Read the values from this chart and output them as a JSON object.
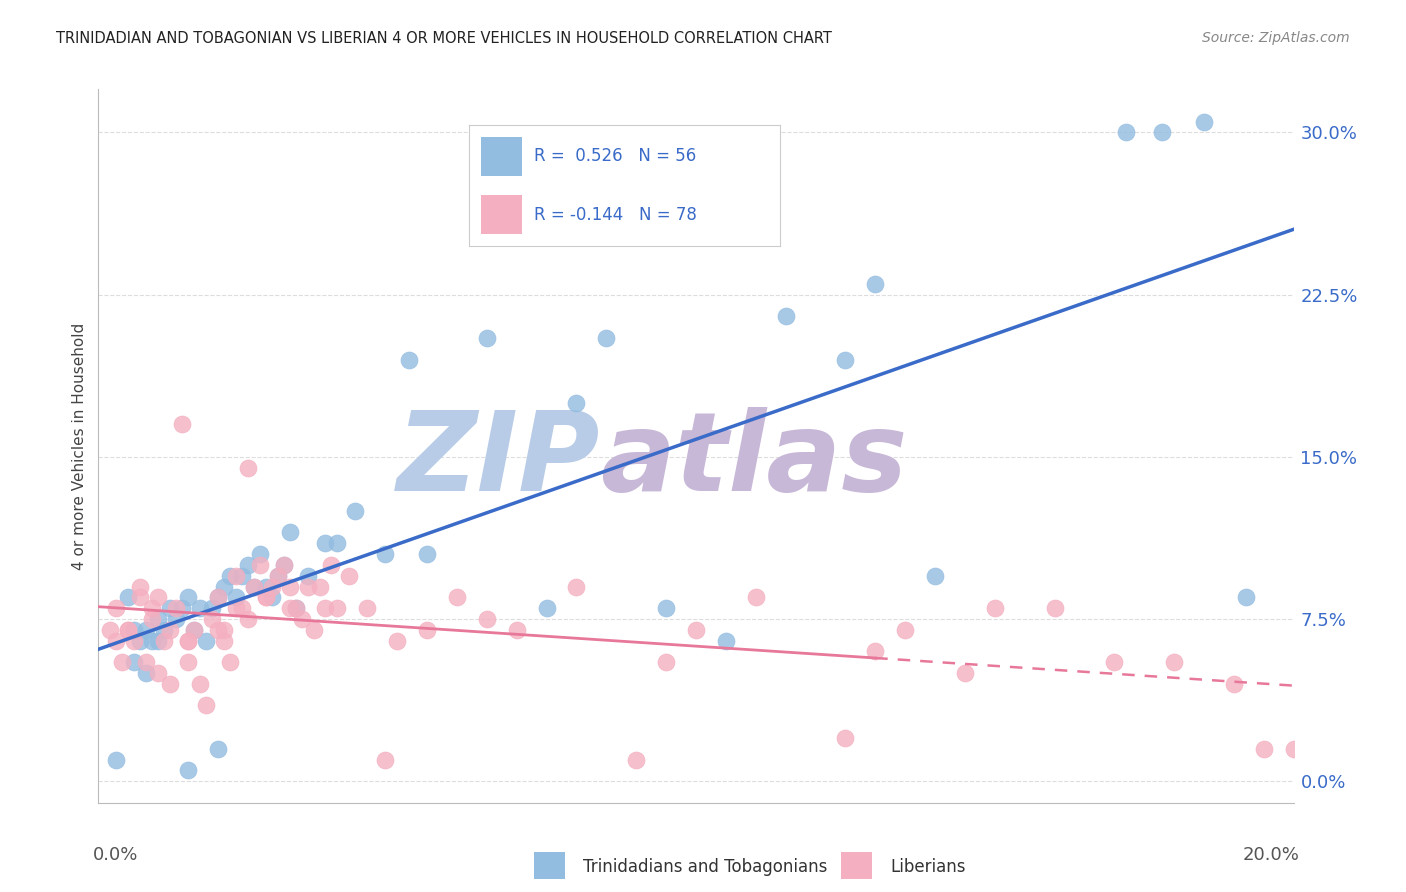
{
  "title": "TRINIDADIAN AND TOBAGONIAN VS LIBERIAN 4 OR MORE VEHICLES IN HOUSEHOLD CORRELATION CHART",
  "source": "Source: ZipAtlas.com",
  "ylabel": "4 or more Vehicles in Household",
  "ytick_labels": [
    "0.0%",
    "7.5%",
    "15.0%",
    "22.5%",
    "30.0%"
  ],
  "ytick_values": [
    0.0,
    7.5,
    15.0,
    22.5,
    30.0
  ],
  "xlim": [
    0.0,
    20.0
  ],
  "ylim": [
    -1.0,
    32.0
  ],
  "blue_color": "#92bce0",
  "pink_color": "#f4afc0",
  "blue_line_color": "#3a6bc8",
  "pink_line_color": "#e8789a",
  "watermark": "ZIPAtlas",
  "watermark_color_zip": "#b8cce8",
  "watermark_color_atlas": "#c8b8d8",
  "background_color": "#ffffff",
  "grid_color": "#dddddd",
  "blue_scatter_x": [
    0.3,
    0.5,
    0.6,
    0.7,
    0.8,
    0.9,
    1.0,
    1.1,
    1.2,
    1.3,
    1.4,
    1.5,
    1.6,
    1.7,
    1.8,
    1.9,
    2.0,
    2.1,
    2.2,
    2.3,
    2.4,
    2.5,
    2.6,
    2.7,
    2.8,
    2.9,
    3.0,
    3.1,
    3.2,
    3.3,
    3.5,
    3.8,
    4.0,
    4.3,
    4.8,
    5.2,
    5.5,
    6.5,
    7.5,
    8.0,
    8.5,
    9.5,
    10.5,
    11.5,
    12.5,
    13.0,
    14.0,
    17.2,
    17.8,
    18.5,
    19.2,
    0.6,
    0.8,
    1.0,
    1.5,
    2.0
  ],
  "blue_scatter_y": [
    1.0,
    8.5,
    7.0,
    6.5,
    7.0,
    6.5,
    7.5,
    7.0,
    8.0,
    7.5,
    8.0,
    8.5,
    7.0,
    8.0,
    6.5,
    8.0,
    8.5,
    9.0,
    9.5,
    8.5,
    9.5,
    10.0,
    9.0,
    10.5,
    9.0,
    8.5,
    9.5,
    10.0,
    11.5,
    8.0,
    9.5,
    11.0,
    11.0,
    12.5,
    10.5,
    19.5,
    10.5,
    20.5,
    8.0,
    17.5,
    20.5,
    8.0,
    6.5,
    21.5,
    19.5,
    23.0,
    9.5,
    30.0,
    30.0,
    30.5,
    8.5,
    5.5,
    5.0,
    6.5,
    0.5,
    1.5
  ],
  "pink_scatter_x": [
    0.2,
    0.3,
    0.4,
    0.5,
    0.6,
    0.7,
    0.8,
    0.9,
    1.0,
    1.0,
    1.1,
    1.2,
    1.3,
    1.4,
    1.5,
    1.5,
    1.6,
    1.7,
    1.8,
    1.9,
    2.0,
    2.1,
    2.1,
    2.2,
    2.3,
    2.4,
    2.5,
    2.5,
    2.6,
    2.7,
    2.8,
    2.9,
    3.0,
    3.1,
    3.2,
    3.3,
    3.4,
    3.5,
    3.6,
    3.7,
    3.8,
    3.9,
    4.0,
    4.2,
    4.5,
    4.8,
    5.0,
    5.5,
    6.0,
    6.5,
    7.0,
    8.0,
    9.0,
    9.5,
    10.0,
    11.0,
    12.5,
    13.0,
    13.5,
    14.5,
    15.0,
    16.0,
    17.0,
    18.0,
    19.0,
    19.5,
    20.0,
    20.5,
    0.3,
    0.5,
    0.7,
    0.9,
    1.2,
    1.5,
    2.0,
    2.3,
    2.8,
    3.2
  ],
  "pink_scatter_y": [
    7.0,
    6.5,
    5.5,
    7.0,
    6.5,
    8.5,
    5.5,
    7.5,
    8.5,
    5.0,
    6.5,
    4.5,
    8.0,
    16.5,
    5.5,
    6.5,
    7.0,
    4.5,
    3.5,
    7.5,
    8.5,
    7.0,
    6.5,
    5.5,
    9.5,
    8.0,
    14.5,
    7.5,
    9.0,
    10.0,
    8.5,
    9.0,
    9.5,
    10.0,
    9.0,
    8.0,
    7.5,
    9.0,
    7.0,
    9.0,
    8.0,
    10.0,
    8.0,
    9.5,
    8.0,
    1.0,
    6.5,
    7.0,
    8.5,
    7.5,
    7.0,
    9.0,
    1.0,
    5.5,
    7.0,
    8.5,
    2.0,
    6.0,
    7.0,
    5.0,
    8.0,
    8.0,
    5.5,
    5.5,
    4.5,
    1.5,
    1.5,
    4.0,
    8.0,
    7.0,
    9.0,
    8.0,
    7.0,
    6.5,
    7.0,
    8.0,
    8.5,
    8.0
  ]
}
